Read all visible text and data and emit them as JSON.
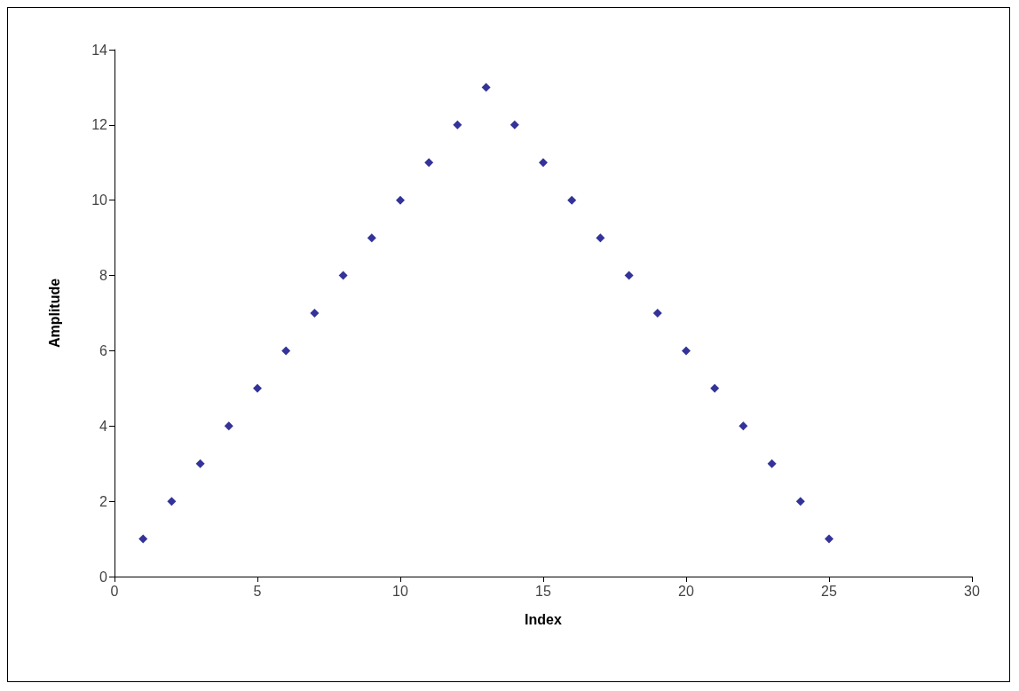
{
  "chart_data": {
    "type": "scatter",
    "xlabel": "Index",
    "ylabel": "Amplitude",
    "x": [
      1,
      2,
      3,
      4,
      5,
      6,
      7,
      8,
      9,
      10,
      11,
      12,
      13,
      14,
      15,
      16,
      17,
      18,
      19,
      20,
      21,
      22,
      23,
      24,
      25
    ],
    "values": [
      1,
      2,
      3,
      4,
      5,
      6,
      7,
      8,
      9,
      10,
      11,
      12,
      13,
      12,
      11,
      10,
      9,
      8,
      7,
      6,
      5,
      4,
      3,
      2,
      1
    ],
    "color": "#000080",
    "marker": "diamond",
    "xlim": [
      0,
      30
    ],
    "xticks": [
      0,
      5,
      10,
      15,
      20,
      25,
      30
    ],
    "ylim": [
      0,
      14
    ],
    "yticks": [
      0,
      2,
      4,
      6,
      8,
      10,
      12,
      14
    ]
  }
}
